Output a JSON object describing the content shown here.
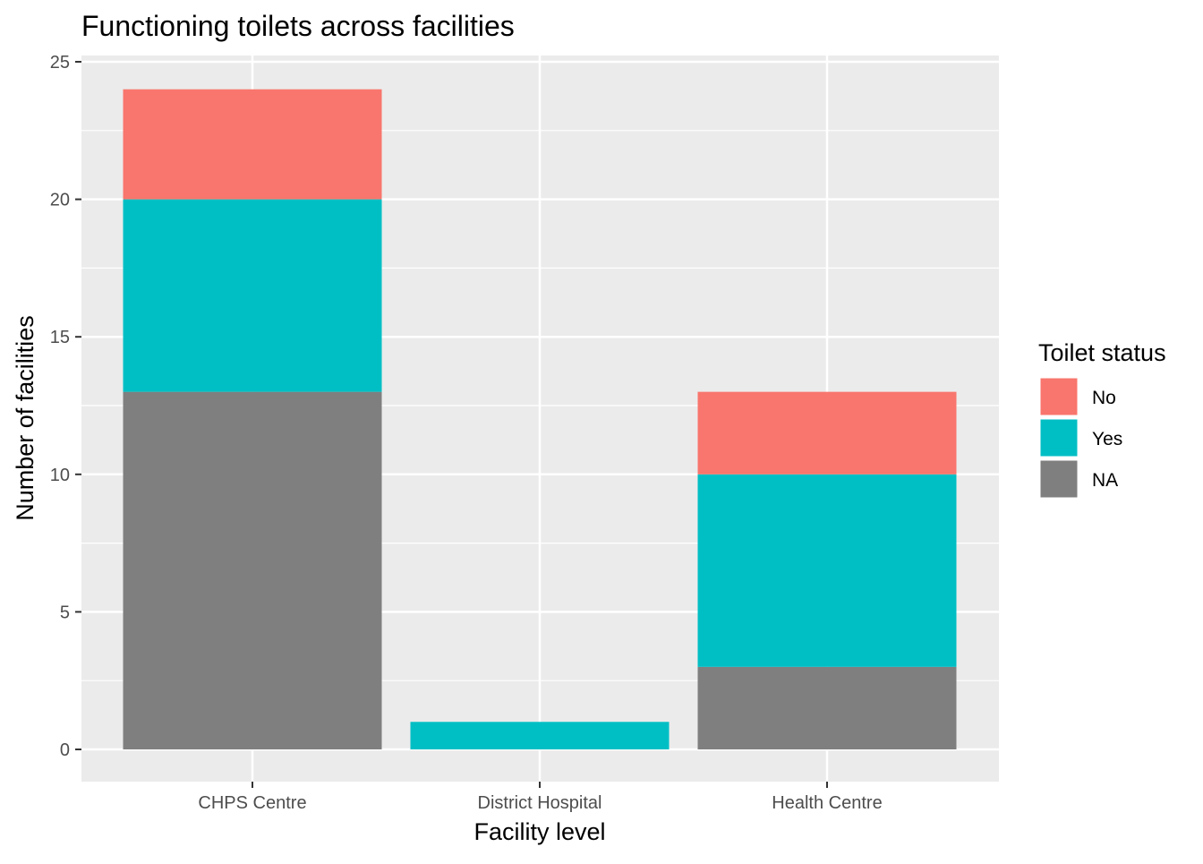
{
  "chart_data": {
    "type": "bar",
    "stacked": true,
    "title": "Functioning toilets across facilities",
    "xlabel": "Facility level",
    "ylabel": "Number of facilities",
    "categories": [
      "CHPS Centre",
      "District Hospital",
      "Health Centre"
    ],
    "series": [
      {
        "name": "NA",
        "color": "#7F7F7F",
        "values": [
          13,
          0,
          3
        ]
      },
      {
        "name": "Yes",
        "color": "#00BFC4",
        "values": [
          7,
          1,
          7
        ]
      },
      {
        "name": "No",
        "color": "#F8766D",
        "values": [
          4,
          0,
          3
        ]
      }
    ],
    "ylim": [
      0,
      25
    ],
    "yticks": [
      0,
      5,
      10,
      15,
      20,
      25
    ],
    "grid": true,
    "legend": {
      "title": "Toilet status",
      "placement": "right",
      "entries": [
        {
          "label": "No",
          "color": "#F8766D"
        },
        {
          "label": "Yes",
          "color": "#00BFC4"
        },
        {
          "label": "NA",
          "color": "#7F7F7F"
        }
      ]
    }
  }
}
